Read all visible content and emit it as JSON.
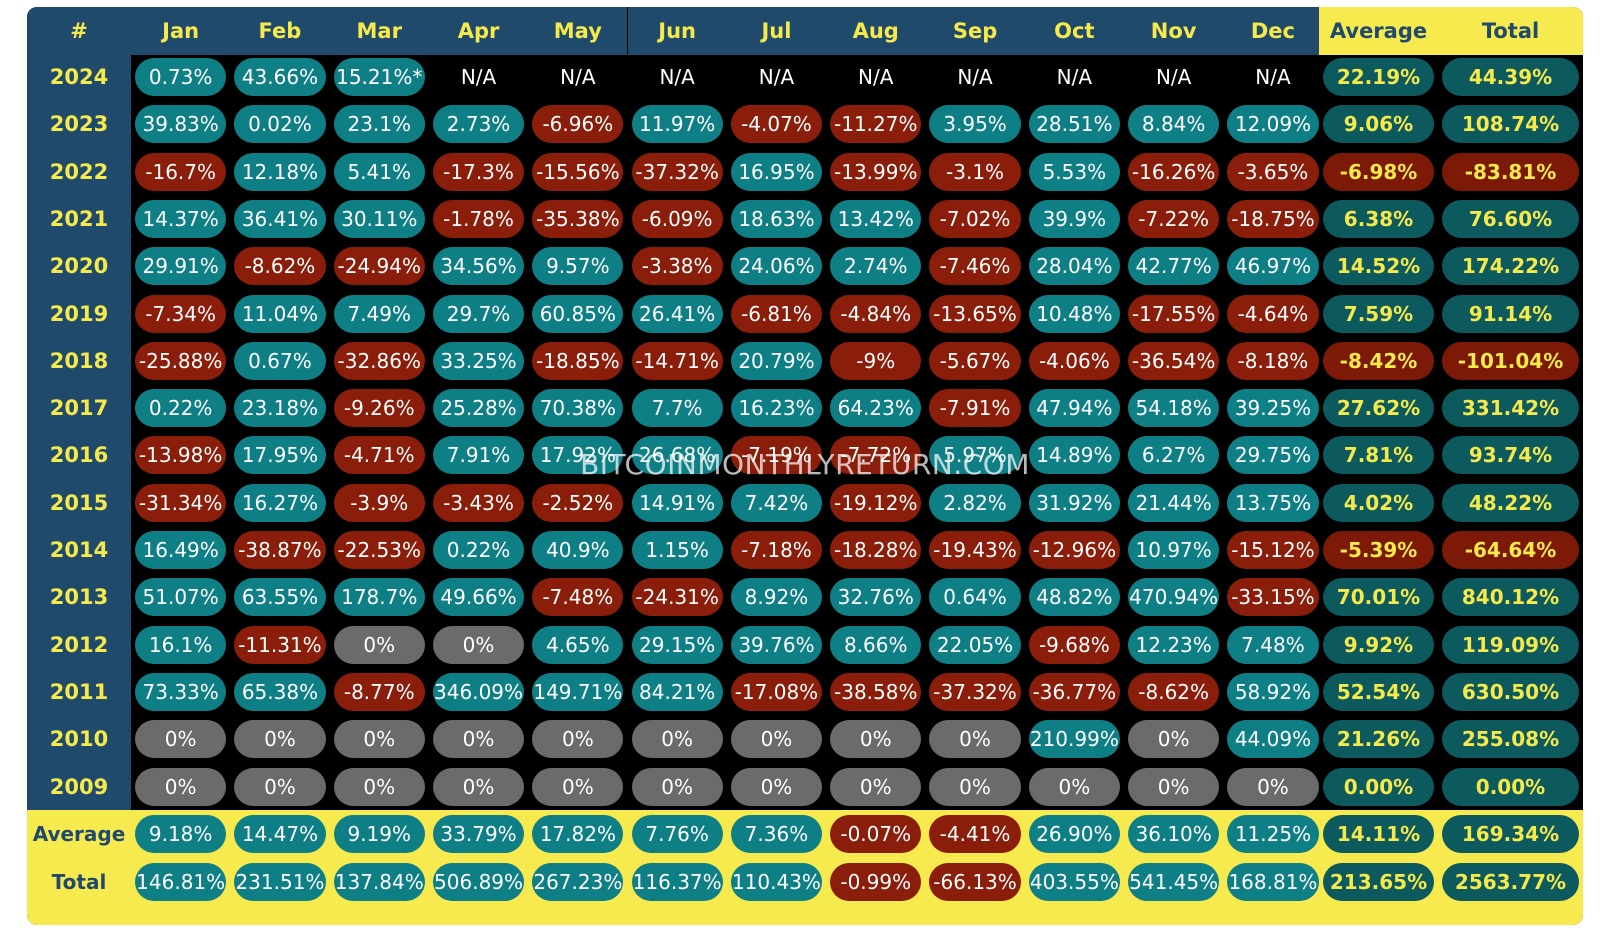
{
  "chart_data": {
    "type": "table",
    "columns": [
      "#",
      "Jan",
      "Feb",
      "Mar",
      "Apr",
      "May",
      "Jun",
      "Jul",
      "Aug",
      "Sep",
      "Oct",
      "Nov",
      "Dec",
      "Average",
      "Total"
    ],
    "rows": [
      {
        "label": "2024",
        "cells": [
          "0.73%",
          "43.66%",
          "15.21%*",
          "N/A",
          "N/A",
          "N/A",
          "N/A",
          "N/A",
          "N/A",
          "N/A",
          "N/A",
          "N/A",
          "22.19%",
          "44.39%"
        ]
      },
      {
        "label": "2023",
        "cells": [
          "39.83%",
          "0.02%",
          "23.1%",
          "2.73%",
          "-6.96%",
          "11.97%",
          "-4.07%",
          "-11.27%",
          "3.95%",
          "28.51%",
          "8.84%",
          "12.09%",
          "9.06%",
          "108.74%"
        ]
      },
      {
        "label": "2022",
        "cells": [
          "-16.7%",
          "12.18%",
          "5.41%",
          "-17.3%",
          "-15.56%",
          "-37.32%",
          "16.95%",
          "-13.99%",
          "-3.1%",
          "5.53%",
          "-16.26%",
          "-3.65%",
          "-6.98%",
          "-83.81%"
        ]
      },
      {
        "label": "2021",
        "cells": [
          "14.37%",
          "36.41%",
          "30.11%",
          "-1.78%",
          "-35.38%",
          "-6.09%",
          "18.63%",
          "13.42%",
          "-7.02%",
          "39.9%",
          "-7.22%",
          "-18.75%",
          "6.38%",
          "76.60%"
        ]
      },
      {
        "label": "2020",
        "cells": [
          "29.91%",
          "-8.62%",
          "-24.94%",
          "34.56%",
          "9.57%",
          "-3.38%",
          "24.06%",
          "2.74%",
          "-7.46%",
          "28.04%",
          "42.77%",
          "46.97%",
          "14.52%",
          "174.22%"
        ]
      },
      {
        "label": "2019",
        "cells": [
          "-7.34%",
          "11.04%",
          "7.49%",
          "29.7%",
          "60.85%",
          "26.41%",
          "-6.81%",
          "-4.84%",
          "-13.65%",
          "10.48%",
          "-17.55%",
          "-4.64%",
          "7.59%",
          "91.14%"
        ]
      },
      {
        "label": "2018",
        "cells": [
          "-25.88%",
          "0.67%",
          "-32.86%",
          "33.25%",
          "-18.85%",
          "-14.71%",
          "20.79%",
          "-9%",
          "-5.67%",
          "-4.06%",
          "-36.54%",
          "-8.18%",
          "-8.42%",
          "-101.04%"
        ]
      },
      {
        "label": "2017",
        "cells": [
          "0.22%",
          "23.18%",
          "-9.26%",
          "25.28%",
          "70.38%",
          "7.7%",
          "16.23%",
          "64.23%",
          "-7.91%",
          "47.94%",
          "54.18%",
          "39.25%",
          "27.62%",
          "331.42%"
        ]
      },
      {
        "label": "2016",
        "cells": [
          "-13.98%",
          "17.95%",
          "-4.71%",
          "7.91%",
          "17.92%",
          "26.68%",
          "-7.19%",
          "-7.72%",
          "5.97%",
          "14.89%",
          "6.27%",
          "29.75%",
          "7.81%",
          "93.74%"
        ]
      },
      {
        "label": "2015",
        "cells": [
          "-31.34%",
          "16.27%",
          "-3.9%",
          "-3.43%",
          "-2.52%",
          "14.91%",
          "7.42%",
          "-19.12%",
          "2.82%",
          "31.92%",
          "21.44%",
          "13.75%",
          "4.02%",
          "48.22%"
        ]
      },
      {
        "label": "2014",
        "cells": [
          "16.49%",
          "-38.87%",
          "-22.53%",
          "0.22%",
          "40.9%",
          "1.15%",
          "-7.18%",
          "-18.28%",
          "-19.43%",
          "-12.96%",
          "10.97%",
          "-15.12%",
          "-5.39%",
          "-64.64%"
        ]
      },
      {
        "label": "2013",
        "cells": [
          "51.07%",
          "63.55%",
          "178.7%",
          "49.66%",
          "-7.48%",
          "-24.31%",
          "8.92%",
          "32.76%",
          "0.64%",
          "48.82%",
          "470.94%",
          "-33.15%",
          "70.01%",
          "840.12%"
        ]
      },
      {
        "label": "2012",
        "cells": [
          "16.1%",
          "-11.31%",
          "0%",
          "0%",
          "4.65%",
          "29.15%",
          "39.76%",
          "8.66%",
          "22.05%",
          "-9.68%",
          "12.23%",
          "7.48%",
          "9.92%",
          "119.09%"
        ]
      },
      {
        "label": "2011",
        "cells": [
          "73.33%",
          "65.38%",
          "-8.77%",
          "346.09%",
          "149.71%",
          "84.21%",
          "-17.08%",
          "-38.58%",
          "-37.32%",
          "-36.77%",
          "-8.62%",
          "58.92%",
          "52.54%",
          "630.50%"
        ]
      },
      {
        "label": "2010",
        "cells": [
          "0%",
          "0%",
          "0%",
          "0%",
          "0%",
          "0%",
          "0%",
          "0%",
          "0%",
          "210.99%",
          "0%",
          "44.09%",
          "21.26%",
          "255.08%"
        ]
      },
      {
        "label": "2009",
        "cells": [
          "0%",
          "0%",
          "0%",
          "0%",
          "0%",
          "0%",
          "0%",
          "0%",
          "0%",
          "0%",
          "0%",
          "0%",
          "0.00%",
          "0.00%"
        ]
      }
    ],
    "footer_rows": [
      {
        "label": "Average",
        "cells": [
          "9.18%",
          "14.47%",
          "9.19%",
          "33.79%",
          "17.82%",
          "7.76%",
          "7.36%",
          "-0.07%",
          "-4.41%",
          "26.90%",
          "36.10%",
          "11.25%",
          "14.11%",
          "169.34%"
        ]
      },
      {
        "label": "Total",
        "cells": [
          "146.81%",
          "231.51%",
          "137.84%",
          "506.89%",
          "267.23%",
          "116.37%",
          "110.43%",
          "-0.99%",
          "-66.13%",
          "403.55%",
          "541.45%",
          "168.81%",
          "213.65%",
          "2563.77%"
        ]
      }
    ],
    "colors": {
      "positive": "#0f7f86",
      "negative": "#8a1e0a",
      "zero": "#6b6b6b",
      "header_blue": "#1f4a6b",
      "highlight_yellow": "#f7ea4e"
    }
  },
  "watermark": "BITCOINMONTHLYRETURN.COM"
}
